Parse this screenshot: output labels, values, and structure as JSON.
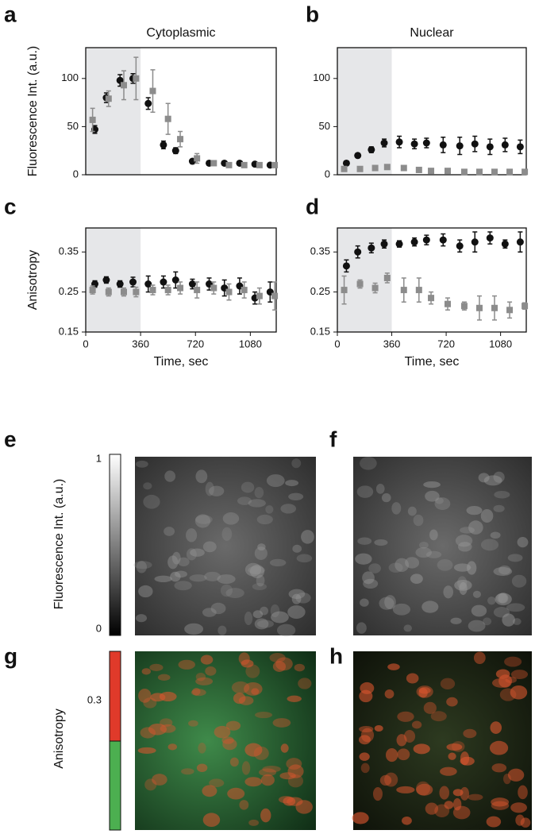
{
  "chart_data": [
    {
      "type": "scatter",
      "panel": "a",
      "title": "Cytoplasmic",
      "ylabel": "Fluorescence Int. (a.u.)",
      "xlim": [
        0,
        1250
      ],
      "ylim": [
        0,
        132
      ],
      "yticks": [
        0,
        50,
        100
      ],
      "highlight_x": [
        0,
        360
      ],
      "series": [
        {
          "color": "#111111",
          "marker": "circle",
          "x": [
            60,
            135,
            225,
            310,
            410,
            510,
            590,
            700,
            810,
            910,
            1010,
            1110,
            1210
          ],
          "values": [
            47,
            80,
            98,
            100,
            74,
            31,
            25,
            14,
            12,
            12,
            12,
            11,
            10
          ],
          "errors": [
            4,
            5,
            6,
            5,
            6,
            4,
            3,
            2,
            1,
            1,
            1,
            1,
            1
          ]
        },
        {
          "color": "#8c8c8c",
          "marker": "square",
          "x": [
            45,
            150,
            250,
            330,
            440,
            540,
            620,
            730,
            840,
            940,
            1040,
            1140,
            1240
          ],
          "values": [
            57,
            79,
            93,
            100,
            87,
            58,
            37,
            17,
            12,
            10,
            10,
            10,
            10
          ],
          "errors": [
            12,
            8,
            15,
            22,
            22,
            16,
            8,
            5,
            2,
            1,
            1,
            1,
            1
          ]
        }
      ]
    },
    {
      "type": "scatter",
      "panel": "b",
      "title": "Nuclear",
      "xlim": [
        0,
        1250
      ],
      "ylim": [
        0,
        132
      ],
      "yticks": [
        0,
        50,
        100
      ],
      "highlight_x": [
        0,
        360
      ],
      "series": [
        {
          "color": "#111111",
          "marker": "circle",
          "x": [
            60,
            135,
            225,
            310,
            410,
            510,
            590,
            700,
            810,
            910,
            1010,
            1110,
            1210
          ],
          "values": [
            12,
            20,
            26,
            33,
            34,
            32,
            33,
            31,
            30,
            32,
            29,
            31,
            29
          ],
          "errors": [
            1,
            2,
            3,
            4,
            6,
            5,
            5,
            8,
            9,
            8,
            8,
            7,
            7
          ]
        },
        {
          "color": "#8c8c8c",
          "marker": "square",
          "x": [
            45,
            150,
            250,
            330,
            440,
            540,
            620,
            730,
            840,
            940,
            1040,
            1140,
            1240
          ],
          "values": [
            6,
            6,
            7,
            8,
            7,
            5,
            4,
            4,
            3,
            3,
            3,
            3,
            3
          ],
          "errors": [
            1,
            1,
            1,
            1,
            1,
            1,
            1,
            1,
            1,
            1,
            1,
            1,
            1
          ]
        }
      ]
    },
    {
      "type": "scatter",
      "panel": "c",
      "ylabel": "Anisotropy",
      "xlabel": "Time, sec",
      "xlim": [
        0,
        1250
      ],
      "ylim": [
        0.15,
        0.41
      ],
      "xticks": [
        0,
        360,
        720,
        1080
      ],
      "yticks": [
        0.15,
        0.25,
        0.35
      ],
      "highlight_x": [
        0,
        360
      ],
      "series": [
        {
          "color": "#111111",
          "marker": "circle",
          "x": [
            60,
            135,
            225,
            310,
            410,
            510,
            590,
            700,
            810,
            910,
            1010,
            1110,
            1210
          ],
          "values": [
            0.27,
            0.28,
            0.27,
            0.275,
            0.27,
            0.275,
            0.28,
            0.27,
            0.27,
            0.26,
            0.265,
            0.235,
            0.25
          ],
          "errors": [
            0.008,
            0.008,
            0.008,
            0.012,
            0.02,
            0.015,
            0.02,
            0.012,
            0.015,
            0.02,
            0.02,
            0.015,
            0.025
          ]
        },
        {
          "color": "#8c8c8c",
          "marker": "square",
          "x": [
            45,
            150,
            250,
            330,
            440,
            540,
            620,
            730,
            840,
            940,
            1040,
            1140,
            1240
          ],
          "values": [
            0.255,
            0.25,
            0.25,
            0.25,
            0.255,
            0.255,
            0.26,
            0.255,
            0.26,
            0.25,
            0.255,
            0.24,
            0.24
          ],
          "errors": [
            0.01,
            0.01,
            0.01,
            0.012,
            0.012,
            0.012,
            0.015,
            0.02,
            0.015,
            0.02,
            0.02,
            0.02,
            0.035
          ]
        }
      ]
    },
    {
      "type": "scatter",
      "panel": "d",
      "xlabel": "Time, sec",
      "xlim": [
        0,
        1250
      ],
      "ylim": [
        0.15,
        0.41
      ],
      "xticks": [
        0,
        360,
        720,
        1080
      ],
      "yticks": [
        0.15,
        0.25,
        0.35
      ],
      "highlight_x": [
        0,
        360
      ],
      "series": [
        {
          "color": "#111111",
          "marker": "circle",
          "x": [
            60,
            135,
            225,
            310,
            410,
            510,
            590,
            700,
            810,
            910,
            1010,
            1110,
            1210
          ],
          "values": [
            0.315,
            0.35,
            0.36,
            0.37,
            0.37,
            0.375,
            0.38,
            0.38,
            0.365,
            0.375,
            0.385,
            0.37,
            0.375
          ],
          "errors": [
            0.015,
            0.015,
            0.012,
            0.01,
            0.008,
            0.01,
            0.012,
            0.015,
            0.015,
            0.025,
            0.015,
            0.01,
            0.025
          ]
        },
        {
          "color": "#8c8c8c",
          "marker": "square",
          "x": [
            45,
            150,
            250,
            330,
            440,
            540,
            620,
            730,
            840,
            940,
            1040,
            1140,
            1240
          ],
          "values": [
            0.255,
            0.27,
            0.26,
            0.285,
            0.255,
            0.255,
            0.235,
            0.22,
            0.215,
            0.21,
            0.21,
            0.205,
            0.215
          ],
          "errors": [
            0.035,
            0.01,
            0.012,
            0.012,
            0.03,
            0.03,
            0.015,
            0.015,
            0.01,
            0.03,
            0.03,
            0.02,
            0.008
          ]
        }
      ]
    }
  ],
  "images": {
    "panels": [
      "e",
      "f",
      "g",
      "h"
    ],
    "fluorescence_label": "Fluorescence Int. (a.u.)",
    "fluorescence_max": "1",
    "fluorescence_min": "0",
    "anisotropy_label": "Anisotropy",
    "anisotropy_mark": "0.3"
  }
}
